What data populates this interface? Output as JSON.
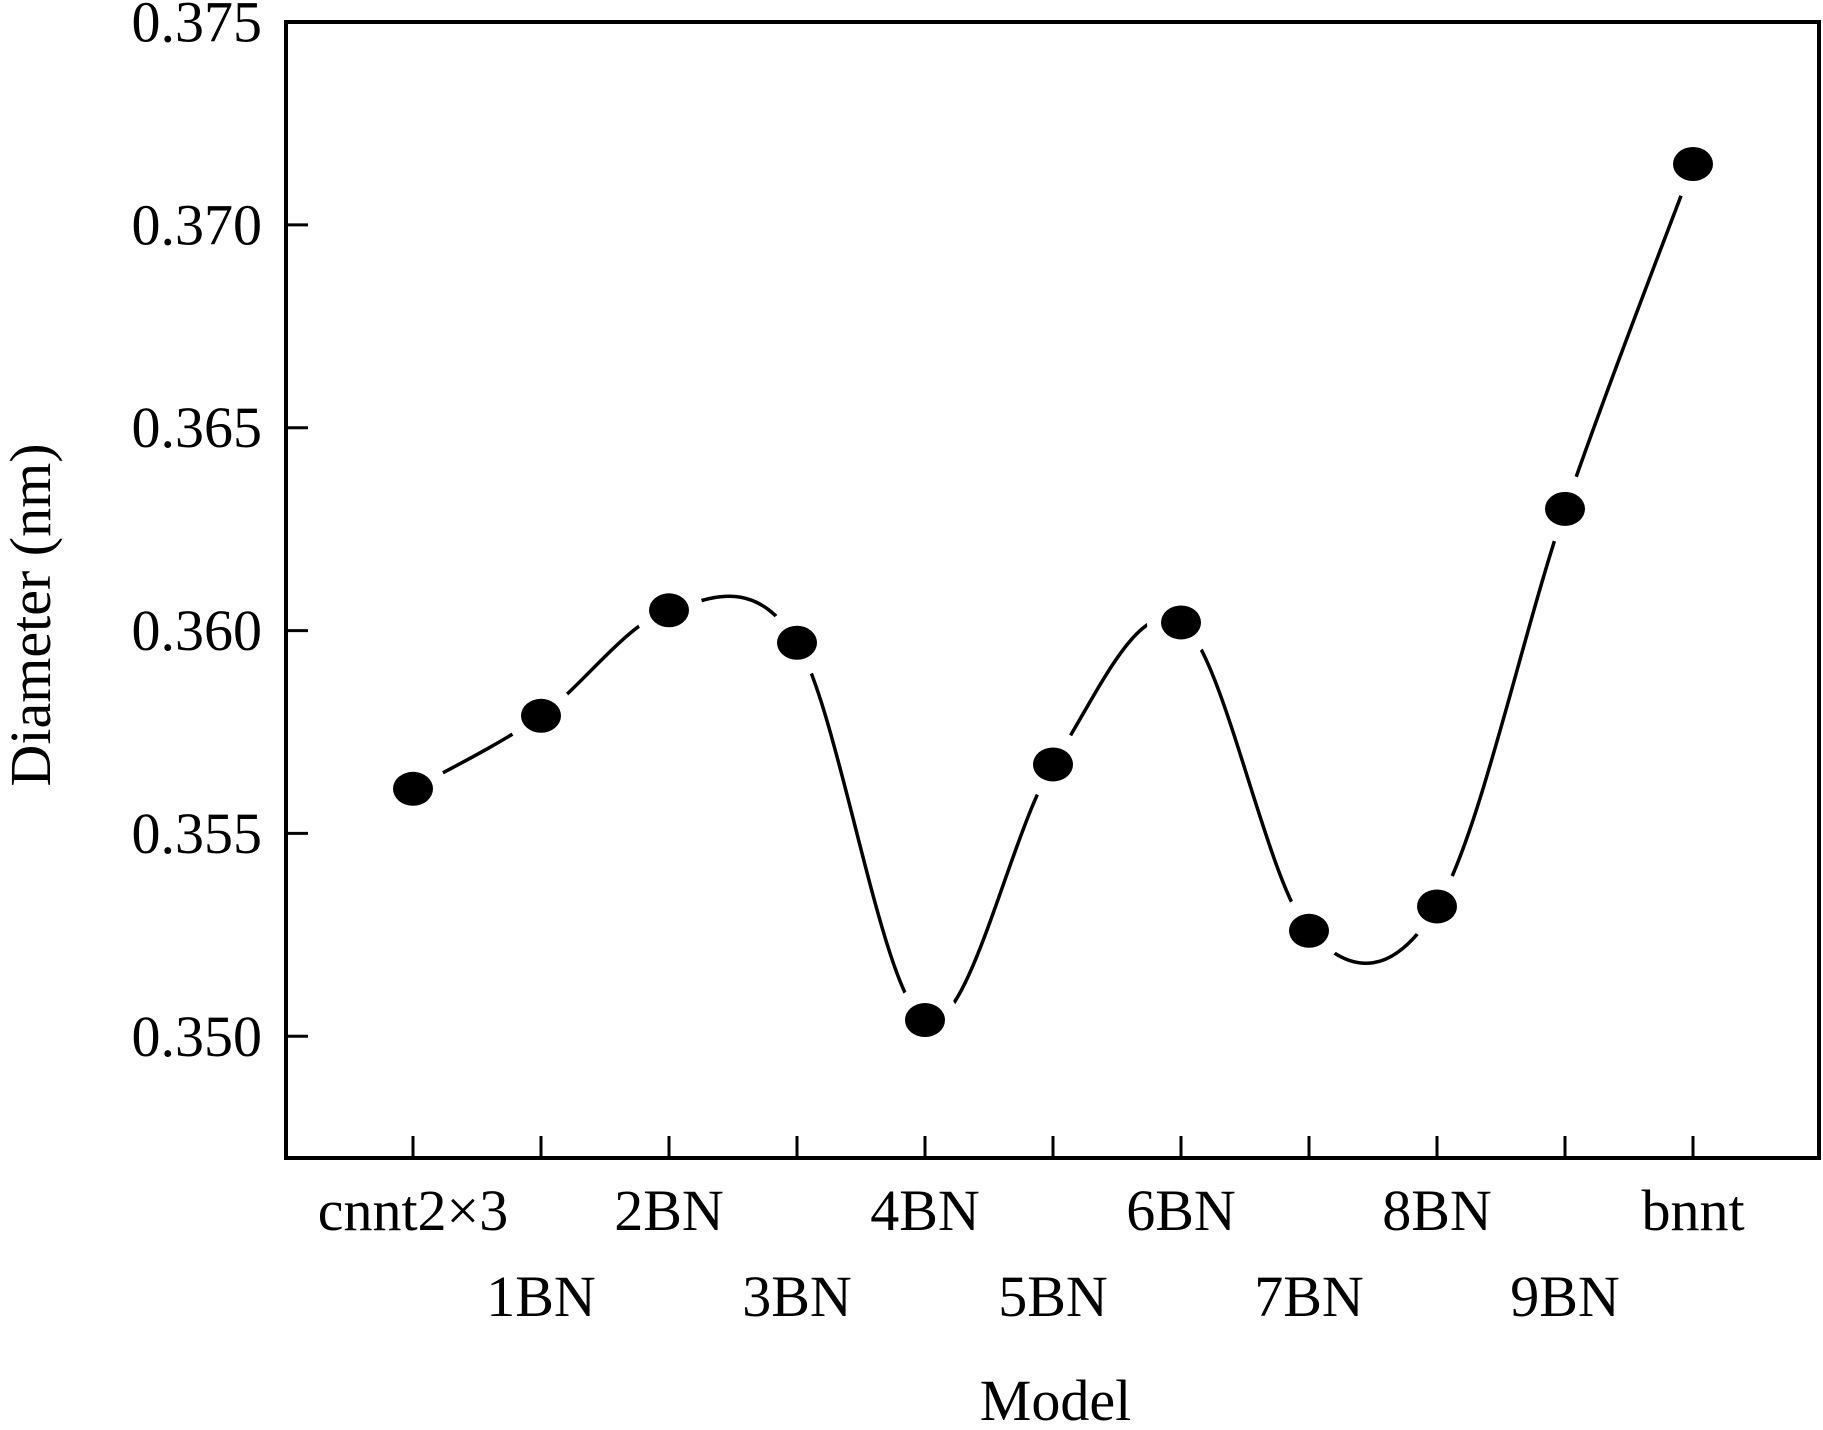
{
  "chart_data": {
    "type": "line",
    "title": "",
    "xlabel": "Model",
    "ylabel": "Diameter (nm)",
    "categories": [
      "cnnt2×3",
      "1BN",
      "2BN",
      "3BN",
      "4BN",
      "5BN",
      "6BN",
      "7BN",
      "8BN",
      "9BN",
      "bnnt"
    ],
    "series": [
      {
        "values": [
          0.3561,
          0.3579,
          0.3605,
          0.3597,
          0.3504,
          0.3567,
          0.3602,
          0.3526,
          0.3532,
          0.363,
          0.3715
        ]
      }
    ],
    "ylim": [
      0.347,
      0.375
    ],
    "yticks": [
      0.35,
      0.355,
      0.36,
      0.365,
      0.37,
      0.375
    ],
    "ytick_labels": [
      "0.350",
      "0.355",
      "0.360",
      "0.365",
      "0.370",
      "0.375"
    ],
    "line_style": "smoothed curve, broken near markers",
    "marker": "filled circle",
    "grid": false,
    "legend": "none",
    "colors": {
      "line": "#000000",
      "marker": "#000000",
      "background": "#ffffff"
    }
  }
}
